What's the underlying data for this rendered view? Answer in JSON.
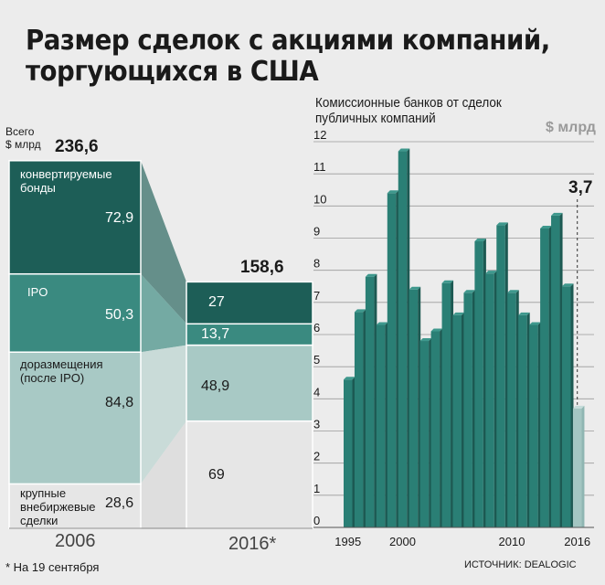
{
  "title_lines": [
    "Размер сделок с акциями компаний,",
    "торгующихся в США"
  ],
  "left": {
    "total_label_lines": [
      "Всего",
      "$ млрд"
    ],
    "total_2006": "236,6",
    "total_2016": "158,6",
    "year_2006": "2006",
    "year_2016": "2016*",
    "footnote": "* На 19 сентября"
  },
  "right": {
    "title_lines": [
      "Комиссионные банков от сделок",
      "публичных компаний"
    ],
    "unit": "$ млрд",
    "source": "ИСТОЧНИК: DEALOGIC",
    "last_label": "3,7"
  },
  "colors": {
    "dark": "#1d5e57",
    "mid": "#3a8a80",
    "light": "#a8c9c5",
    "pale": "#e6e6e6",
    "bar": "#2a7f75",
    "bar_top": "#3e988d",
    "bar_side": "#1c5952",
    "last_bar": "#a3c6c2"
  },
  "chart_data": [
    {
      "type": "bar",
      "categories": [
        "2006",
        "2016*"
      ],
      "ylabel": "$ млрд",
      "series": [
        {
          "name": "крупные внебиржевые сделки",
          "values": [
            28.6,
            69
          ],
          "labels": [
            "28,6",
            "69"
          ],
          "label_lines": [
            "крупные",
            "внебиржевые",
            "сделки"
          ]
        },
        {
          "name": "доразмещения (после IPO)",
          "values": [
            84.8,
            48.9
          ],
          "labels": [
            "84,8",
            "48,9"
          ],
          "label_lines": [
            "доразмещения",
            "(после IPO)"
          ]
        },
        {
          "name": "IPO",
          "values": [
            50.3,
            13.7
          ],
          "labels": [
            "50,3",
            "13,7"
          ],
          "label_lines": [
            "IPO"
          ]
        },
        {
          "name": "конвертируемые бонды",
          "values": [
            72.9,
            27
          ],
          "labels": [
            "72,9",
            "27"
          ],
          "label_lines": [
            "конвертируемые",
            "бонды"
          ]
        }
      ],
      "totals": [
        236.6,
        158.6
      ]
    },
    {
      "type": "bar",
      "title": "Комиссионные банков от сделок публичных компаний",
      "ylabel": "$ млрд",
      "x": [
        1995,
        1996,
        1997,
        1998,
        1999,
        2000,
        2001,
        2002,
        2003,
        2004,
        2005,
        2006,
        2007,
        2008,
        2009,
        2010,
        2011,
        2012,
        2013,
        2014,
        2015,
        2016
      ],
      "values": [
        4.6,
        6.7,
        7.8,
        6.3,
        10.4,
        11.7,
        7.4,
        5.8,
        6.1,
        7.6,
        6.6,
        7.3,
        8.9,
        7.9,
        9.4,
        7.3,
        6.6,
        6.3,
        9.3,
        9.7,
        7.5,
        3.7
      ],
      "x_ticks": [
        "1995",
        "2000",
        "2010",
        "2016"
      ],
      "y_ticks": [
        "0",
        "1",
        "2",
        "3",
        "4",
        "5",
        "6",
        "7",
        "8",
        "9",
        "10",
        "11",
        "12"
      ],
      "ylim": [
        0,
        12
      ],
      "annotation": "3,7",
      "grid": true
    }
  ]
}
